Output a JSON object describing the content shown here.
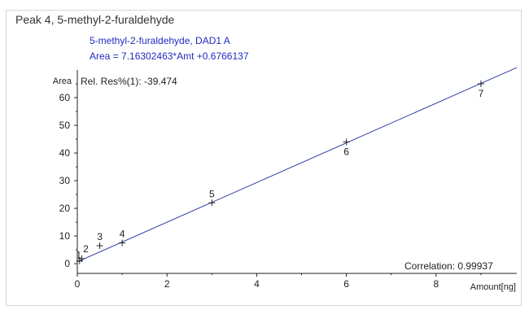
{
  "panel": {
    "title": "Peak 4, 5-methyl-2-furaldehyde"
  },
  "chart_data": {
    "type": "scatter",
    "title": "5-methyl-2-furaldehyde, DAD1 A",
    "equation": "Area = 7.16302463*Amt +0.6766137",
    "rel_res": "Rel. Res%(1): -39.474",
    "correlation": "Correlation: 0.99937",
    "ylabel": "Area",
    "xlabel": "Amount[ng]",
    "xlim": [
      0,
      9.8
    ],
    "ylim": [
      -3.5,
      70
    ],
    "xticks": [
      0,
      2,
      4,
      6,
      8
    ],
    "yticks": [
      0,
      10,
      20,
      30,
      40,
      50,
      60
    ],
    "fit": {
      "slope": 7.16302463,
      "intercept": 0.6766137
    },
    "points": [
      {
        "label": "1",
        "x": 0.05,
        "y": 1.0
      },
      {
        "label": "2",
        "x": 0.1,
        "y": 1.8
      },
      {
        "label": "3",
        "x": 0.5,
        "y": 6.5
      },
      {
        "label": "4",
        "x": 1.0,
        "y": 7.5
      },
      {
        "label": "5",
        "x": 3.0,
        "y": 22.0
      },
      {
        "label": "6",
        "x": 6.0,
        "y": 44.0
      },
      {
        "label": "7",
        "x": 9.0,
        "y": 65.0
      }
    ],
    "colors": {
      "line": "#2b3ea8",
      "header_text": "#1f2bbf",
      "markers": "#222222",
      "axis": "#222222"
    }
  }
}
